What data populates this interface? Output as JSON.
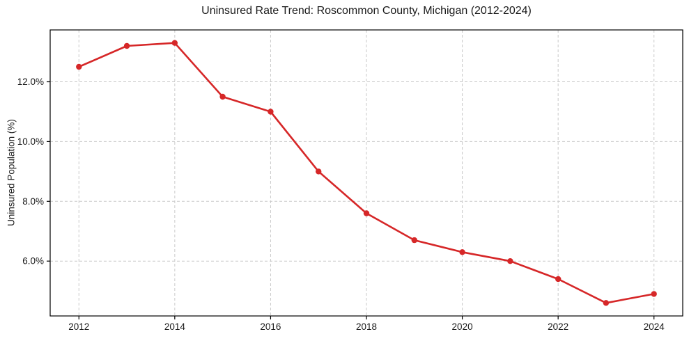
{
  "chart_data": {
    "type": "line",
    "title": "Uninsured Rate Trend: Roscommon County, Michigan (2012-2024)",
    "xlabel": "",
    "ylabel": "Uninsured Population (%)",
    "x": [
      2012,
      2013,
      2014,
      2015,
      2016,
      2017,
      2018,
      2019,
      2020,
      2021,
      2022,
      2023,
      2024
    ],
    "values": [
      12.5,
      13.2,
      13.3,
      11.5,
      11.0,
      9.0,
      7.6,
      6.7,
      6.3,
      6.0,
      5.4,
      4.6,
      4.9
    ],
    "xlim": [
      2011.4,
      2024.6
    ],
    "ylim": [
      4.165,
      13.735
    ],
    "x_ticks": [
      2012,
      2014,
      2016,
      2018,
      2020,
      2022,
      2024
    ],
    "x_tick_labels": [
      "2012",
      "2014",
      "2016",
      "2018",
      "2020",
      "2022",
      "2024"
    ],
    "y_ticks": [
      6,
      8,
      10,
      12
    ],
    "y_tick_labels": [
      "6.0%",
      "8.0%",
      "10.0%",
      "12.0%"
    ],
    "grid": true,
    "grid_style": "dashed",
    "legend": false,
    "line_color": "#d62728",
    "marker": "circle",
    "grid_color": "#c9c9c9",
    "spine_color": "#000000",
    "background_color": "#ffffff"
  }
}
